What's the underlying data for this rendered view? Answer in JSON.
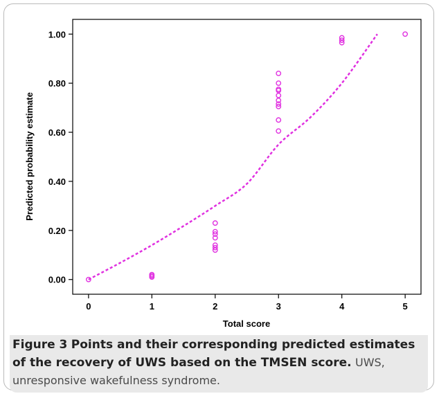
{
  "chart_data": {
    "type": "scatter",
    "xlabel": "Total score",
    "ylabel": "Predicted probability estimate",
    "xlim": [
      -0.25,
      5.25
    ],
    "ylim": [
      -0.06,
      1.06
    ],
    "x_ticks": [
      0,
      1,
      2,
      3,
      4,
      5
    ],
    "x_tick_labels": [
      "0",
      "1",
      "2",
      "3",
      "4",
      "5"
    ],
    "y_ticks": [
      0,
      0.2,
      0.4,
      0.6,
      0.8,
      1.0
    ],
    "y_tick_labels": [
      "0.00",
      "0.20",
      "0.40",
      "0.60",
      "0.80",
      "1.00"
    ],
    "grid": false,
    "points": [
      {
        "x": 0,
        "y": 0.0
      },
      {
        "x": 1,
        "y": 0.01
      },
      {
        "x": 1,
        "y": 0.015
      },
      {
        "x": 1,
        "y": 0.02
      },
      {
        "x": 2,
        "y": 0.12
      },
      {
        "x": 2,
        "y": 0.13
      },
      {
        "x": 2,
        "y": 0.14
      },
      {
        "x": 2,
        "y": 0.17
      },
      {
        "x": 2,
        "y": 0.185
      },
      {
        "x": 2,
        "y": 0.195
      },
      {
        "x": 2,
        "y": 0.23
      },
      {
        "x": 3,
        "y": 0.605
      },
      {
        "x": 3,
        "y": 0.65
      },
      {
        "x": 3,
        "y": 0.705
      },
      {
        "x": 3,
        "y": 0.715
      },
      {
        "x": 3,
        "y": 0.73
      },
      {
        "x": 3,
        "y": 0.75
      },
      {
        "x": 3,
        "y": 0.77
      },
      {
        "x": 3,
        "y": 0.775
      },
      {
        "x": 3,
        "y": 0.8
      },
      {
        "x": 3,
        "y": 0.84
      },
      {
        "x": 4,
        "y": 0.965
      },
      {
        "x": 4,
        "y": 0.975
      },
      {
        "x": 4,
        "y": 0.985
      },
      {
        "x": 5,
        "y": 1.0
      }
    ],
    "fit_curve": {
      "style": "dashed",
      "x": [
        0,
        0.5,
        1,
        1.5,
        2,
        2.5,
        3,
        3.5,
        4,
        4.56
      ],
      "y": [
        0,
        0.068,
        0.14,
        0.218,
        0.3,
        0.39,
        0.55,
        0.66,
        0.8,
        1.0
      ]
    },
    "marker_color": "#e030e0",
    "line_color": "#e030e0"
  },
  "caption": {
    "figure_label": "Figure 3",
    "title": "Points and their corresponding predicted estimates of the recovery of UWS based on the TMSEN score.",
    "body": "UWS, unresponsive wakefulness syndrome."
  }
}
